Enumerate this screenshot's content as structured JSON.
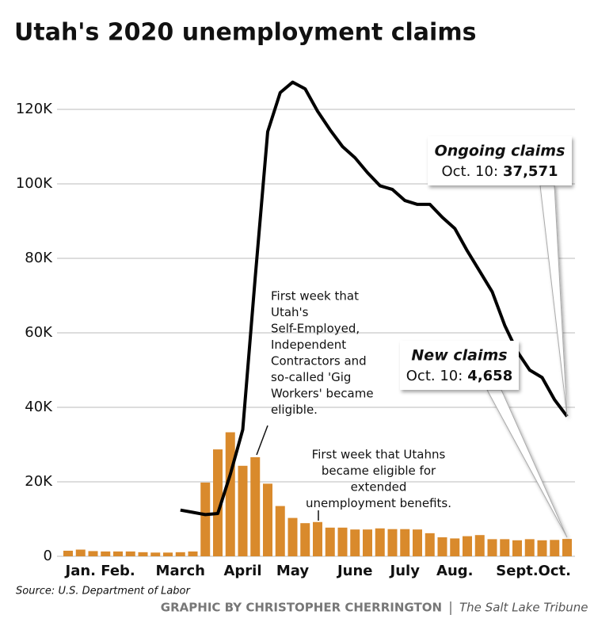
{
  "chart_data": {
    "type": "bar_line",
    "title": "Utah's 2020 unemployment claims",
    "categories": [
      null,
      "Jan.",
      null,
      null,
      "Feb.",
      null,
      null,
      null,
      null,
      "March",
      null,
      null,
      null,
      null,
      "April",
      null,
      null,
      null,
      "May",
      null,
      null,
      null,
      null,
      "June",
      null,
      null,
      null,
      "July",
      null,
      null,
      null,
      "Aug.",
      null,
      null,
      null,
      null,
      "Sept.",
      null,
      null,
      "Oct.",
      null
    ],
    "series": [
      {
        "name": "New claims",
        "type": "bar",
        "color": "#d98a2c",
        "values": [
          1500,
          1800,
          1400,
          1300,
          1300,
          1300,
          1100,
          1000,
          1000,
          1100,
          1300,
          19800,
          28700,
          33300,
          24300,
          26600,
          19500,
          13500,
          10300,
          8900,
          9200,
          7700,
          7700,
          7200,
          7200,
          7500,
          7300,
          7300,
          7200,
          6200,
          5100,
          4800,
          5400,
          5700,
          4600,
          4600,
          4300,
          4600,
          4300,
          4400,
          4658
        ],
        "callout": {
          "label": "Oct. 10:",
          "value_label": "4,658"
        }
      },
      {
        "name": "Ongoing claims",
        "type": "line",
        "color": "#000000",
        "values": [
          null,
          null,
          null,
          null,
          null,
          null,
          null,
          null,
          null,
          12400,
          11800,
          11200,
          11500,
          22000,
          34000,
          75000,
          114000,
          124500,
          127300,
          125500,
          119500,
          114500,
          110000,
          107000,
          103000,
          99500,
          98500,
          95500,
          94500,
          94500,
          91000,
          88000,
          82000,
          76500,
          71000,
          62000,
          55000,
          50000,
          48000,
          42000,
          37571
        ],
        "callout": {
          "label": "Oct. 10:",
          "value_label": "37,571"
        }
      }
    ],
    "ylim": [
      0,
      130000
    ],
    "yticks": [
      0,
      {
        "value": 20000,
        "label": "20K"
      },
      {
        "value": 40000,
        "label": "40K"
      },
      {
        "value": 60000,
        "label": "60K"
      },
      {
        "value": 80000,
        "label": "80K"
      },
      {
        "value": 100000,
        "label": "100K"
      },
      {
        "value": 120000,
        "label": "120K"
      }
    ],
    "grid": true,
    "annotations": [
      {
        "lines": [
          "First week that",
          "Utah's",
          "Self-Employed,",
          "Independent",
          "Contractors and",
          "so-called 'Gig",
          "Workers' became",
          "eligible."
        ]
      },
      {
        "lines": [
          "First week that Utahns",
          "became eligible for",
          "extended",
          "unemployment benefits."
        ]
      }
    ],
    "source": "Source: U.S. Department of Labor",
    "credit": "GRAPHIC BY CHRISTOPHER CHERRINGTON",
    "publisher": "The Salt Lake Tribune"
  }
}
